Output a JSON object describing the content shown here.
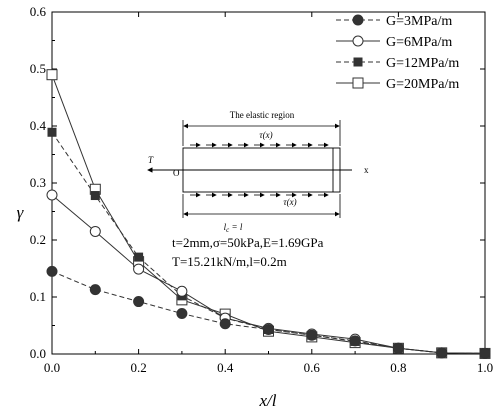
{
  "chart_data": {
    "type": "line",
    "xlabel": "x/l",
    "ylabel": "γ",
    "xlim": [
      0.0,
      1.0
    ],
    "ylim": [
      0.0,
      0.6
    ],
    "x_ticks": [
      "0.0",
      "0.2",
      "0.4",
      "0.6",
      "0.8",
      "1.0"
    ],
    "y_ticks": [
      "0.0",
      "0.1",
      "0.2",
      "0.3",
      "0.4",
      "0.5",
      "0.6"
    ],
    "legend_position": "top-right",
    "series": [
      {
        "name": "G=3MPa/m",
        "line_style": "dashed",
        "marker": "filled-circle",
        "x": [
          0.0,
          0.1,
          0.2,
          0.3,
          0.4,
          0.5,
          0.6,
          0.7,
          0.8,
          0.9,
          1.0
        ],
        "values": [
          0.145,
          0.113,
          0.092,
          0.071,
          0.053,
          0.043,
          0.033,
          0.023,
          0.01,
          0.002,
          0.001
        ]
      },
      {
        "name": "G=6MPa/m",
        "line_style": "solid",
        "marker": "open-circle",
        "x": [
          0.0,
          0.1,
          0.2,
          0.3,
          0.4,
          0.5,
          0.6,
          0.7,
          0.8,
          0.9,
          1.0
        ],
        "values": [
          0.279,
          0.215,
          0.149,
          0.11,
          0.063,
          0.045,
          0.035,
          0.026,
          0.01,
          0.002,
          0.001
        ]
      },
      {
        "name": "G=12MPa/m",
        "line_style": "dashed",
        "marker": "filled-square",
        "x": [
          0.0,
          0.1,
          0.2,
          0.3,
          0.4,
          0.5,
          0.6,
          0.7,
          0.8,
          0.9,
          1.0
        ],
        "values": [
          0.389,
          0.278,
          0.17,
          0.102,
          0.063,
          0.043,
          0.033,
          0.022,
          0.01,
          0.002,
          0.001
        ]
      },
      {
        "name": "G=20MPa/m",
        "line_style": "solid",
        "marker": "open-square",
        "x": [
          0.0,
          0.1,
          0.2,
          0.3,
          0.4,
          0.5,
          0.6,
          0.7,
          0.8,
          0.9,
          1.0
        ],
        "values": [
          0.49,
          0.289,
          0.162,
          0.095,
          0.07,
          0.04,
          0.03,
          0.02,
          0.01,
          0.002,
          0.001
        ]
      }
    ],
    "inset": {
      "region_label": "The elastic region",
      "tau_label": "τ(x)",
      "force_label": "T",
      "origin_label": "O",
      "axis_label": "x",
      "length_label": "lc = l",
      "length_main": "l",
      "length_sub": "c",
      "length_rest": " = l"
    },
    "parameters": [
      "t=2mm,σ=50kPa,E=1.69GPa",
      "T=15.21kN/m,l=0.2m"
    ]
  }
}
